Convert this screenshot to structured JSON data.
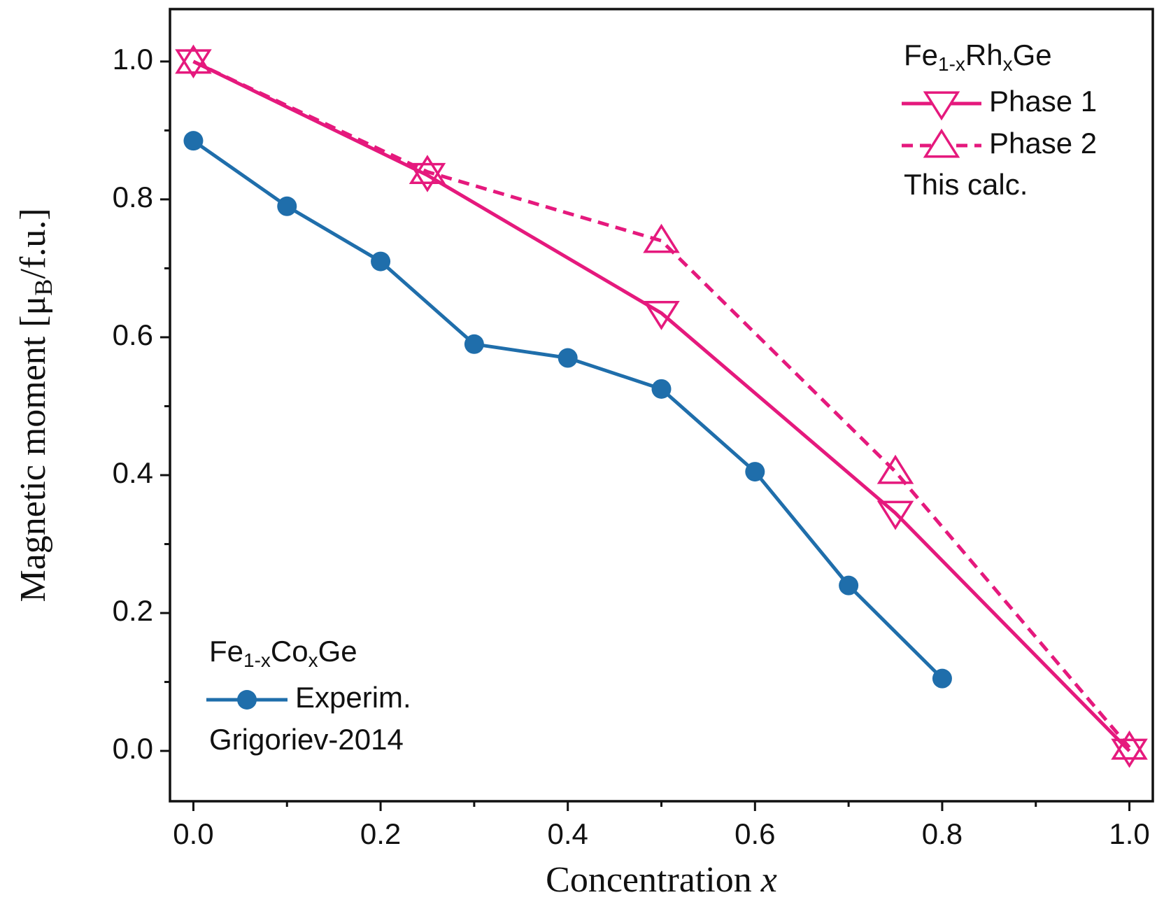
{
  "chart_data": {
    "type": "line",
    "x_label": [
      "Concentration ",
      "x"
    ],
    "y_label": [
      "Magnetic moment  [μ",
      "B",
      "/f.u.]"
    ],
    "xlim": [
      -0.025,
      1.025
    ],
    "ylim": [
      -0.073,
      1.076
    ],
    "xticks": [
      {
        "value": 0,
        "label": "0.0"
      },
      0.2,
      0.4,
      0.6,
      0.8,
      {
        "value": 1,
        "label": "1.0"
      }
    ],
    "xminorticks": [
      0.1,
      0.3,
      0.5,
      0.7,
      0.9
    ],
    "yticks": [
      {
        "value": 0,
        "label": "0.0"
      },
      0.2,
      0.4,
      0.6,
      0.8,
      {
        "value": 1,
        "label": "1.0"
      }
    ],
    "yminorticks": [
      0.1,
      0.3,
      0.5,
      0.7,
      0.9
    ],
    "legend_groups": [
      {
        "title": [
          "Fe",
          "1-x",
          "Rh",
          "x",
          "Ge"
        ],
        "note": "This calc."
      },
      {
        "title": [
          "Fe",
          "1-x",
          "Co",
          "x",
          "Ge"
        ],
        "note": "Grigoriev-2014"
      }
    ],
    "series": [
      {
        "name": "Phase 1",
        "color": "#e5197d",
        "marker": "triangle-down",
        "linestyle": "solid",
        "x": [
          0,
          0.25,
          0.5,
          0.75,
          1.0
        ],
        "values": [
          1.0,
          0.835,
          0.635,
          0.345,
          0.0
        ]
      },
      {
        "name": "Phase 2",
        "color": "#e5197d",
        "marker": "triangle-up",
        "linestyle": "dashed",
        "x": [
          0,
          0.25,
          0.5,
          0.75,
          1.0
        ],
        "values": [
          1.0,
          0.84,
          0.74,
          0.405,
          0.005
        ]
      },
      {
        "name": "Experim.",
        "color": "#1f6eab",
        "marker": "circle",
        "linestyle": "solid",
        "x": [
          0,
          0.1,
          0.2,
          0.3,
          0.4,
          0.5,
          0.6,
          0.7,
          0.8
        ],
        "values": [
          0.885,
          0.79,
          0.71,
          0.59,
          0.57,
          0.525,
          0.405,
          0.24,
          0.105
        ]
      }
    ]
  }
}
